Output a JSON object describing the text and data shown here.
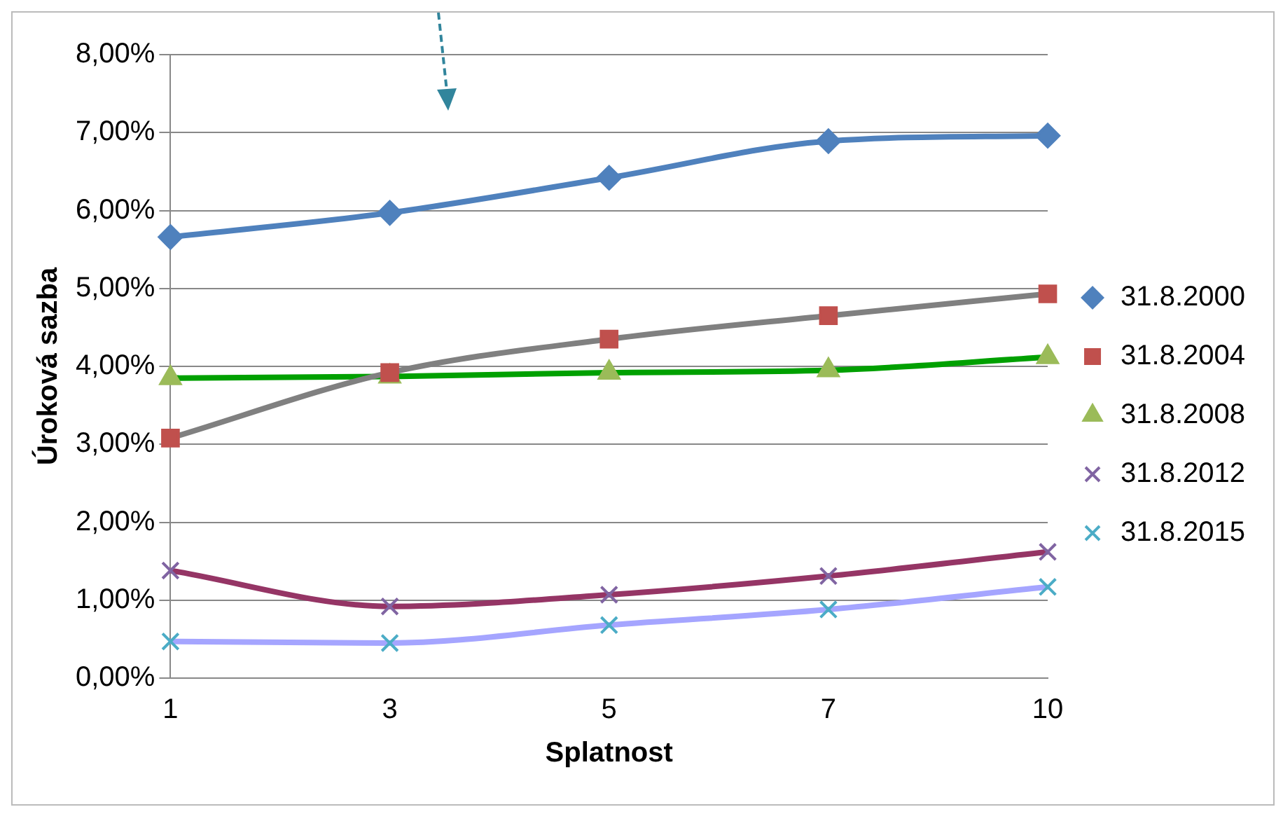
{
  "chart_data": {
    "type": "line",
    "xlabel": "Splatnost",
    "ylabel": "Úroková sazba",
    "categories": [
      "1",
      "3",
      "5",
      "7",
      "10"
    ],
    "series": [
      {
        "name": "31.8.2000",
        "color": "#4f81bd",
        "colors": [
          "#4f81bd",
          "#4f81bd",
          "#4f81bd",
          "#4f81bd",
          "#4f81bd"
        ],
        "marker": "diamond",
        "values": [
          5.66,
          5.97,
          6.42,
          6.89,
          6.96
        ]
      },
      {
        "name": "31.8.2004",
        "color": "#808080",
        "colors": [
          "#c0504d",
          "#c0504d",
          "#c0504d",
          "#c0504d",
          "#c0504d"
        ],
        "marker": "square",
        "values": [
          3.08,
          3.92,
          4.35,
          4.65,
          4.93
        ]
      },
      {
        "name": "31.8.2008",
        "color": "#00a000",
        "colors": [
          "#9bbb59",
          "#9bbb59",
          "#9bbb59",
          "#9bbb59",
          "#9bbb59"
        ],
        "marker": "triangle",
        "values": [
          3.85,
          3.87,
          3.92,
          3.95,
          4.12
        ]
      },
      {
        "name": "31.8.2012",
        "color": "#953565",
        "colors": [
          "#8064a2",
          "#8064a2",
          "#8064a2",
          "#8064a2",
          "#8064a2"
        ],
        "marker": "cross",
        "values": [
          1.38,
          0.92,
          1.07,
          1.31,
          1.62
        ]
      },
      {
        "name": "31.8.2015",
        "color": "#a5a5ff",
        "colors": [
          "#4bacc6",
          "#4bacc6",
          "#4bacc6",
          "#4bacc6",
          "#4bacc6"
        ],
        "marker": "cross",
        "values": [
          0.47,
          0.45,
          0.68,
          0.88,
          1.17
        ]
      }
    ],
    "ylim": [
      0,
      8
    ],
    "yticks": [
      {
        "value": 0,
        "label": "0,00%"
      },
      {
        "value": 1,
        "label": "1,00%"
      },
      {
        "value": 2,
        "label": "2,00%"
      },
      {
        "value": 3,
        "label": "3,00%"
      },
      {
        "value": 4,
        "label": "4,00%"
      },
      {
        "value": 5,
        "label": "5,00%"
      },
      {
        "value": 6,
        "label": "6,00%"
      },
      {
        "value": 7,
        "label": "7,00%"
      },
      {
        "value": 8,
        "label": "8,00%"
      }
    ],
    "grid": "y",
    "legend": "right",
    "line_style": "solid"
  }
}
